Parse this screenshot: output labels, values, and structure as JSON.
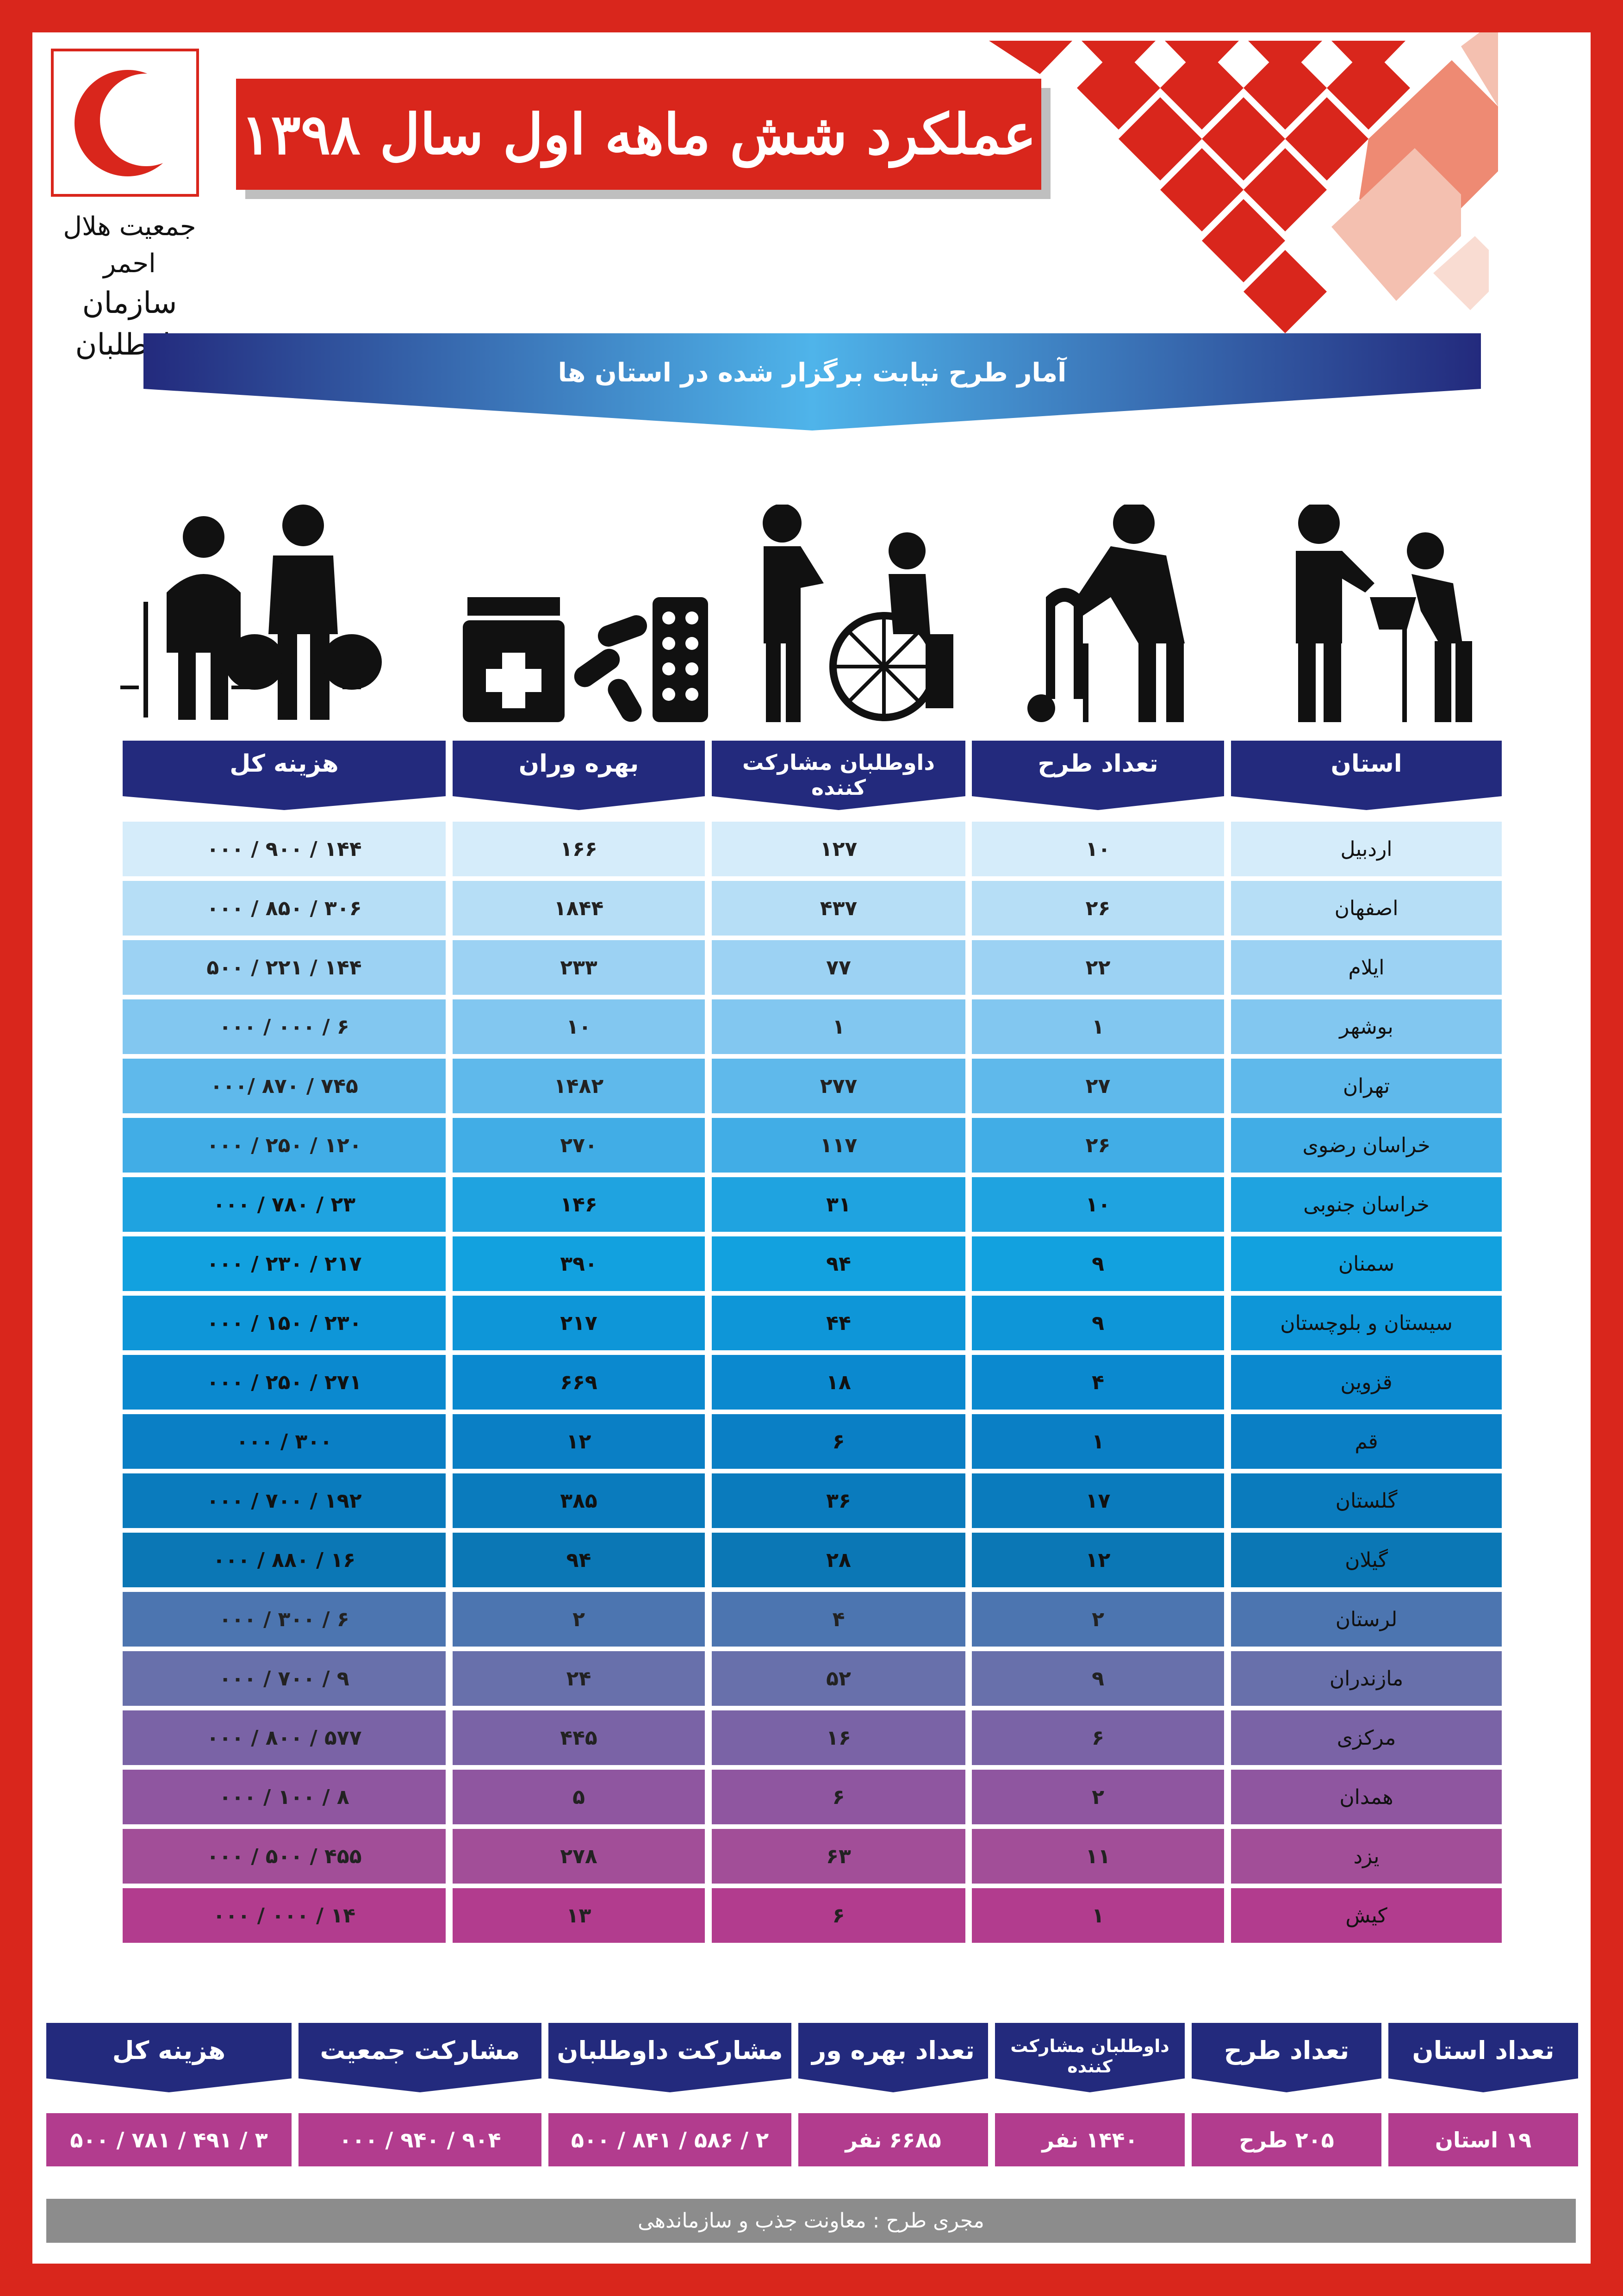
{
  "header": {
    "title": "عملکرد شش ماهه اول سال ۱۳۹۸",
    "org_line1": "جمعیت هلال احمر",
    "org_line2": "سازمان داوطلبان"
  },
  "subtitle": "آمار طرح نیابت برگزار شده در استان ها",
  "icons": [
    "elderly-couple-with-bags-icon",
    "medicine-icon",
    "wheelchair-helper-icon",
    "walker-elderly-icon",
    "food-basket-giving-icon"
  ],
  "table": {
    "headers": [
      "استان",
      "تعداد طرح",
      "داوطلبان مشارکت کننده",
      "بهره وران",
      "هزینه کل"
    ],
    "rows": [
      [
        "اردبیل",
        "۱۰",
        "۱۲۷",
        "۱۶۶",
        "۱۴۴ / ۹۰۰ / ۰۰۰"
      ],
      [
        "اصفهان",
        "۲۶",
        "۴۳۷",
        "۱۸۴۴",
        "۳۰۶ / ۸۵۰ / ۰۰۰"
      ],
      [
        "ایلام",
        "۲۲",
        "۷۷",
        "۲۳۳",
        "۱۴۴ / ۲۲۱ / ۵۰۰"
      ],
      [
        "بوشهر",
        "۱",
        "۱",
        "۱۰",
        "۶ / ۰۰۰ / ۰۰۰"
      ],
      [
        "تهران",
        "۲۷",
        "۲۷۷",
        "۱۴۸۲",
        "۷۴۵ / ۸۷۰ /۰۰۰"
      ],
      [
        "خراسان رضوی",
        "۲۶",
        "۱۱۷",
        "۲۷۰",
        "۱۲۰ / ۲۵۰ / ۰۰۰"
      ],
      [
        "خراسان جنوبی",
        "۱۰",
        "۳۱",
        "۱۴۶",
        "۲۳ / ۷۸۰ / ۰۰۰"
      ],
      [
        "سمنان",
        "۹",
        "۹۴",
        "۳۹۰",
        "۲۱۷ / ۲۳۰ / ۰۰۰"
      ],
      [
        "سیستان و بلوچستان",
        "۹",
        "۴۴",
        "۲۱۷",
        "۲۳۰ / ۱۵۰ / ۰۰۰"
      ],
      [
        "قزوین",
        "۴",
        "۱۸",
        "۶۶۹",
        "۲۷۱ / ۲۵۰ / ۰۰۰"
      ],
      [
        "قم",
        "۱",
        "۶",
        "۱۲",
        "۳۰۰ / ۰۰۰"
      ],
      [
        "گلستان",
        "۱۷",
        "۳۶",
        "۳۸۵",
        "۱۹۲ / ۷۰۰ / ۰۰۰"
      ],
      [
        "گیلان",
        "۱۲",
        "۲۸",
        "۹۴",
        "۱۶ / ۸۸۰ / ۰۰۰"
      ],
      [
        "لرستان",
        "۲",
        "۴",
        "۲",
        "۶ / ۳۰۰ / ۰۰۰"
      ],
      [
        "مازندران",
        "۹",
        "۵۲",
        "۲۴",
        "۹ / ۷۰۰ / ۰۰۰"
      ],
      [
        "مرکزی",
        "۶",
        "۱۶",
        "۴۴۵",
        "۵۷۷ / ۸۰۰ / ۰۰۰"
      ],
      [
        "همدان",
        "۲",
        "۶",
        "۵",
        "۸ / ۱۰۰ / ۰۰۰"
      ],
      [
        "یزد",
        "۱۱",
        "۶۳",
        "۲۷۸",
        "۴۵۵ / ۵۰۰ / ۰۰۰"
      ],
      [
        "کیش",
        "۱",
        "۶",
        "۱۳",
        "۱۴ / ۰۰۰ / ۰۰۰"
      ]
    ],
    "row_colors": [
      "#d5ecfa",
      "#b6def6",
      "#9cd2f3",
      "#82c7f0",
      "#5fb9eb",
      "#41ade6",
      "#1fa3e0",
      "#12a1df",
      "#0e96d8",
      "#0b89cf",
      "#0a7fc5",
      "#0a7bbd",
      "#0b77b5",
      "#4c75b0",
      "#6870ab",
      "#7a63a6",
      "#8f56a0",
      "#a24e98",
      "#b23c8e"
    ]
  },
  "summary": {
    "headers": [
      "تعداد استان",
      "تعداد طرح",
      "داوطلبان مشارکت کننده",
      "تعداد بهره ور",
      "مشارکت داوطلبان",
      "مشارکت جمعیت",
      "هزینه کل"
    ],
    "values": [
      "۱۹ استان",
      "۲۰۵ طرح",
      "۱۴۴۰ نفر",
      "۶۶۸۵ نفر",
      "۲ / ۵۸۶ / ۸۴۱ / ۵۰۰",
      "۹۰۴ / ۹۴۰ / ۰۰۰",
      "۳ / ۴۹۱ / ۷۸۱ / ۵۰۰"
    ]
  },
  "footer": "مجری طرح : معاونت جذب و سازماندهی",
  "colors": {
    "brand_red": "#d9261c",
    "header_navy": "#232a7d",
    "ribbon_blue": "#3f8fd6",
    "summary_magenta": "#b23c8e",
    "footer_gray": "#8c8c8c"
  }
}
